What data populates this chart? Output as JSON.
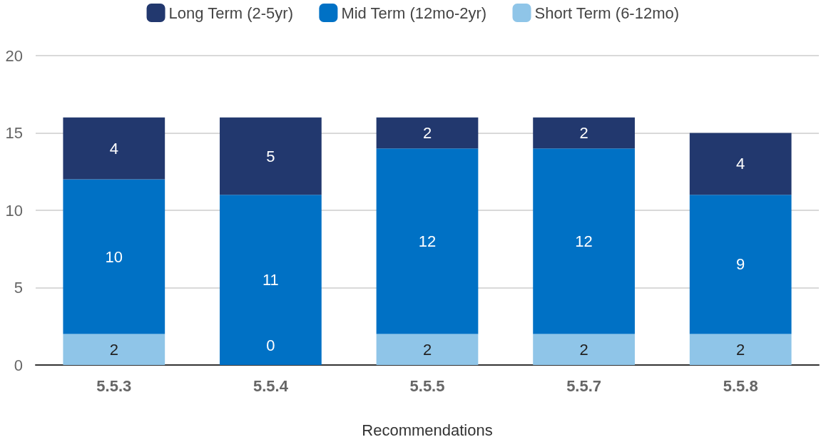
{
  "chart_data": {
    "type": "bar",
    "stacked": true,
    "xlabel": "Recommendations",
    "categories": [
      "5.5.3",
      "5.5.4",
      "5.5.5",
      "5.5.7",
      "5.5.8"
    ],
    "series": [
      {
        "name": "Short Term (6-12mo)",
        "color": "#8fc5e8",
        "values": [
          2,
          0,
          2,
          2,
          2
        ],
        "value_labels": [
          "2",
          null,
          "2",
          "2",
          "2"
        ]
      },
      {
        "name": "Mid Term (12mo-2yr)",
        "color": "#0071c5",
        "values": [
          10,
          11,
          12,
          12,
          9
        ],
        "value_labels": [
          "10",
          "11",
          "12",
          "12",
          "9"
        ]
      },
      {
        "name": "Long Term (2-5yr)",
        "color": "#22386e",
        "values": [
          4,
          5,
          2,
          2,
          4
        ],
        "value_labels": [
          "4",
          "5",
          "2",
          "2",
          "4"
        ]
      }
    ],
    "annotations": [
      {
        "text": "0",
        "x": "5.5.4",
        "y": 0
      }
    ],
    "ylim": [
      0,
      20
    ],
    "yticks": [
      0,
      5,
      10,
      15,
      20
    ],
    "grid": "y",
    "legend": "top"
  }
}
